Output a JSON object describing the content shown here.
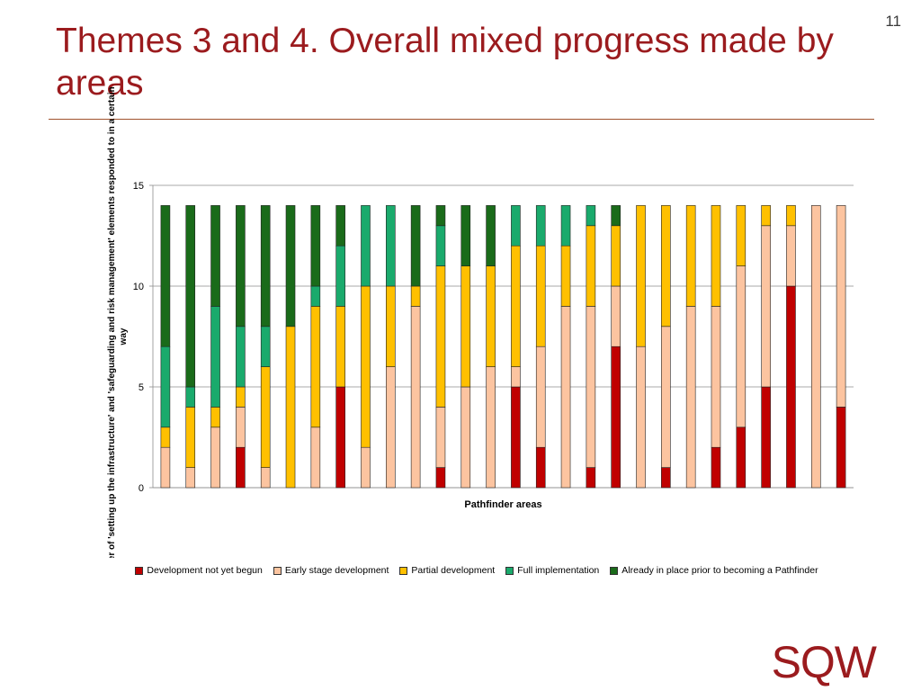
{
  "slide": {
    "number": "11",
    "title": "Themes 3 and 4. Overall mixed progress made by areas",
    "logo": "SQW"
  },
  "colors": {
    "title": "#9b1b1e",
    "rule": "#a0522d",
    "series": [
      "#c00000",
      "#fcc4a0",
      "#ffc000",
      "#1aaa6c",
      "#1a6b1a"
    ]
  },
  "chart_data": {
    "type": "bar",
    "stacked": true,
    "title": "",
    "xlabel": "Pathfinder areas",
    "ylabel": "Number of 'setting up the infrastructure' and 'safeguarding and risk management' elements responded to in a certain way",
    "ylim": [
      0,
      15
    ],
    "yticks": [
      0,
      5,
      10,
      15
    ],
    "grid": true,
    "legend_position": "bottom",
    "categories": [
      "",
      "",
      "",
      "",
      "",
      "",
      "",
      "",
      "",
      "",
      "",
      "",
      "",
      "",
      "",
      "",
      "",
      "",
      "",
      "",
      "",
      "",
      "",
      "",
      "",
      "",
      "",
      ""
    ],
    "series": [
      {
        "name": "Development not yet begun",
        "values": [
          0,
          0,
          0,
          2,
          0,
          0,
          0,
          5,
          0,
          0,
          0,
          1,
          0,
          0,
          5,
          2,
          0,
          1,
          7,
          0,
          1,
          0,
          2,
          3,
          5,
          10,
          0,
          4
        ]
      },
      {
        "name": "Early stage development",
        "values": [
          2,
          1,
          3,
          2,
          1,
          0,
          3,
          0,
          2,
          6,
          9,
          3,
          5,
          6,
          1,
          5,
          9,
          8,
          3,
          7,
          7,
          9,
          7,
          8,
          8,
          3,
          14,
          10
        ]
      },
      {
        "name": "Partial development",
        "values": [
          1,
          3,
          1,
          1,
          5,
          8,
          6,
          4,
          8,
          4,
          1,
          7,
          6,
          5,
          6,
          5,
          3,
          4,
          3,
          7,
          6,
          5,
          5,
          3,
          1,
          1,
          0,
          0
        ]
      },
      {
        "name": "Full implementation",
        "values": [
          4,
          1,
          5,
          3,
          2,
          0,
          1,
          3,
          4,
          4,
          0,
          2,
          0,
          0,
          2,
          2,
          2,
          1,
          0,
          0,
          0,
          0,
          0,
          0,
          0,
          0,
          0,
          0
        ]
      },
      {
        "name": "Already in place prior to becoming a Pathfinder",
        "values": [
          7,
          9,
          5,
          6,
          6,
          6,
          4,
          2,
          0,
          0,
          4,
          1,
          3,
          3,
          0,
          0,
          0,
          0,
          1,
          0,
          0,
          0,
          0,
          0,
          0,
          0,
          0,
          0
        ]
      }
    ]
  }
}
